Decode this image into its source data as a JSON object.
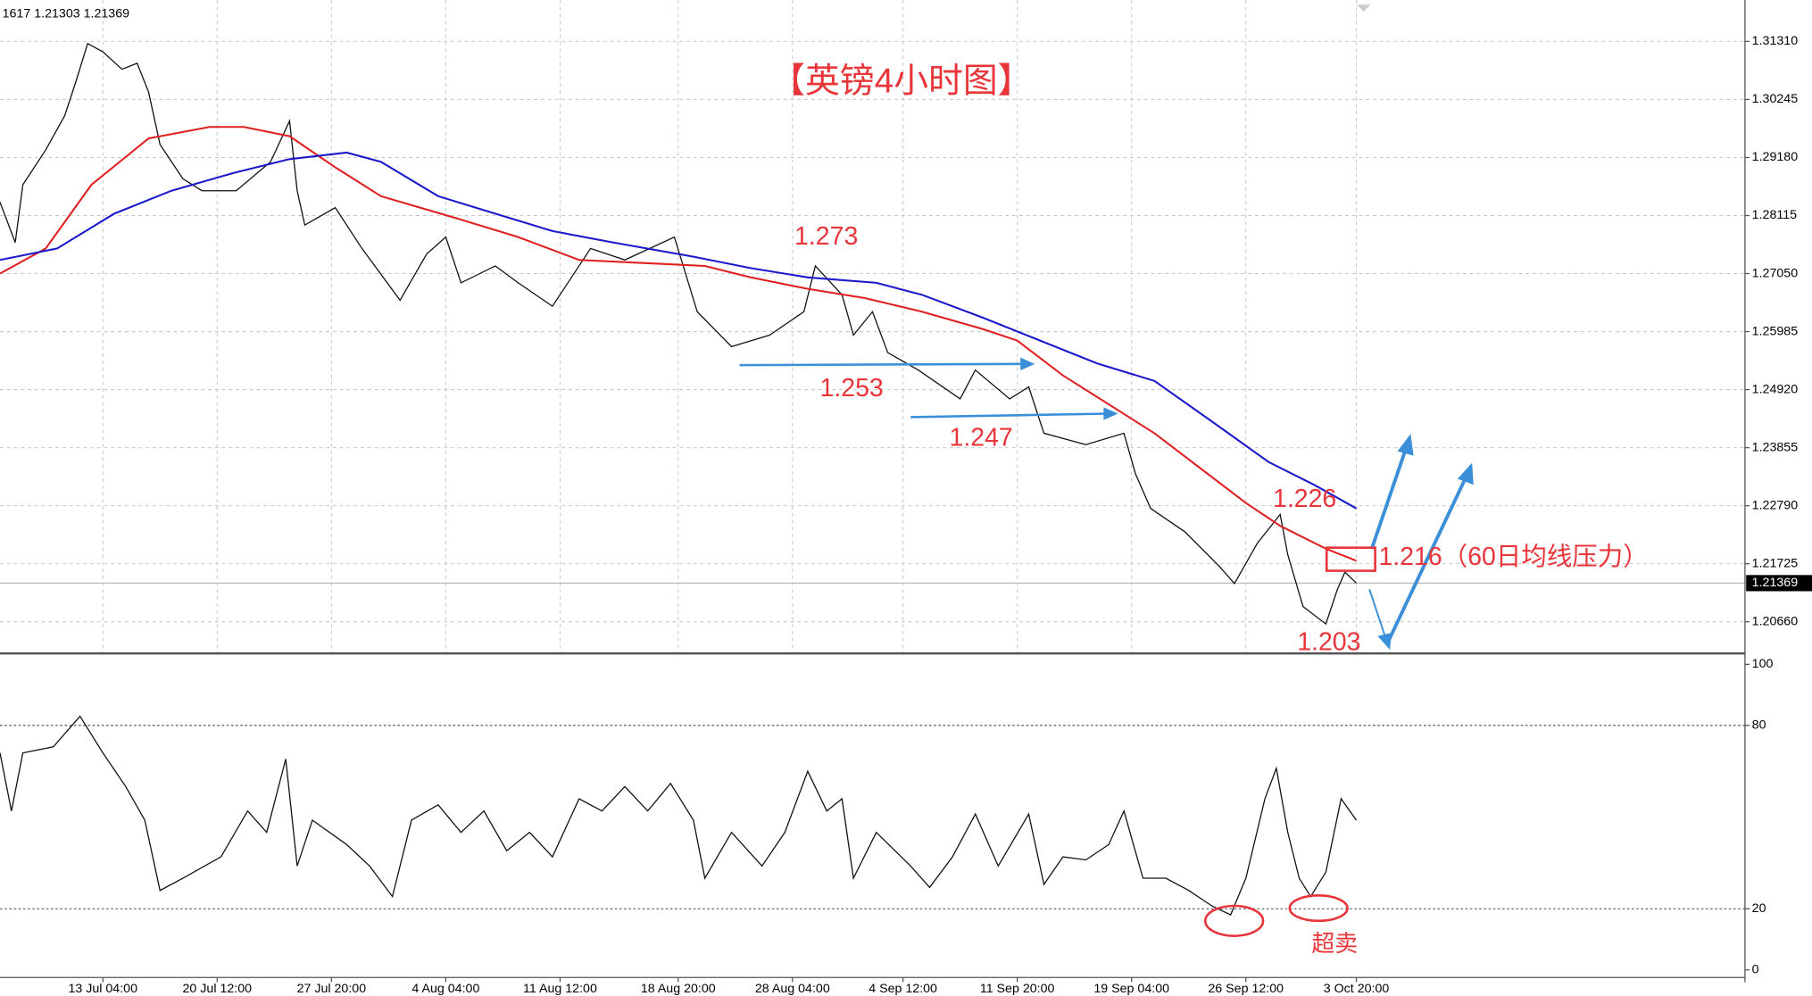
{
  "header": "1617 1.21303 1.21369",
  "chart_data": [
    {
      "type": "line",
      "title": "【英镑4小时图】",
      "xlim": [
        0,
        458
      ],
      "xticks": [
        {
          "value": 27,
          "label": "13 Jul 04:00"
        },
        {
          "value": 57,
          "label": "20 Jul 12:00"
        },
        {
          "value": 87,
          "label": "27 Jul 20:00"
        },
        {
          "value": 117,
          "label": "4 Aug 04:00"
        },
        {
          "value": 147,
          "label": "11 Aug 12:00"
        },
        {
          "value": 178,
          "label": "18 Aug 20:00"
        },
        {
          "value": 208,
          "label": "28 Aug 04:00"
        },
        {
          "value": 237,
          "label": "4 Sep 12:00"
        },
        {
          "value": 267,
          "label": "11 Sep 20:00"
        },
        {
          "value": 297,
          "label": "19 Sep 04:00"
        },
        {
          "value": 327,
          "label": "26 Sep 12:00"
        },
        {
          "value": 356,
          "label": "3 Oct 20:00"
        }
      ],
      "ylim": [
        1.2009,
        1.3207
      ],
      "yticks": [
        {
          "value": 1.3131,
          "label": "1.31310"
        },
        {
          "value": 1.30245,
          "label": "1.30245"
        },
        {
          "value": 1.2918,
          "label": "1.29180"
        },
        {
          "value": 1.28115,
          "label": "1.28115"
        },
        {
          "value": 1.2705,
          "label": "1.27050"
        },
        {
          "value": 1.25985,
          "label": "1.25985"
        },
        {
          "value": 1.2492,
          "label": "1.24920"
        },
        {
          "value": 1.23855,
          "label": "1.23855"
        },
        {
          "value": 1.2279,
          "label": "1.22790"
        },
        {
          "value": 1.21725,
          "label": "1.21725"
        },
        {
          "value": 1.2066,
          "label": "1.20660"
        }
      ],
      "grid": true,
      "last_price": 1.21369,
      "series": [
        {
          "color": "#111111",
          "x": [
            0,
            4,
            6,
            12,
            17,
            20,
            23,
            27,
            32,
            36,
            39,
            42,
            48,
            53,
            62,
            71,
            76,
            78,
            80,
            88,
            95,
            105,
            112,
            117,
            121,
            130,
            136,
            145,
            155,
            164,
            177,
            183,
            192,
            202,
            211,
            214,
            221,
            224,
            229,
            233,
            241,
            252,
            256,
            265,
            270,
            274,
            285,
            295,
            298,
            302,
            311,
            320,
            324,
            330,
            336,
            338,
            342,
            348,
            351,
            353,
            356
          ],
          "values": [
            1.2836,
            1.2762,
            1.2868,
            1.2932,
            1.2995,
            1.3059,
            1.3127,
            1.3112,
            1.308,
            1.3091,
            1.3038,
            1.2942,
            1.2879,
            1.2857,
            1.2857,
            1.291,
            1.2985,
            1.2857,
            1.2794,
            1.2826,
            1.2751,
            1.2656,
            1.2741,
            1.2772,
            1.2688,
            1.2719,
            1.2688,
            1.2645,
            1.2751,
            1.273,
            1.2772,
            1.2635,
            1.2571,
            1.2592,
            1.2635,
            1.2719,
            1.2666,
            1.2592,
            1.2635,
            1.256,
            1.2528,
            1.2475,
            1.2528,
            1.2475,
            1.2497,
            1.2412,
            1.2391,
            1.2412,
            1.2338,
            1.2274,
            1.2231,
            1.2168,
            1.2136,
            1.221,
            1.2263,
            1.2189,
            1.2094,
            1.2062,
            1.2125,
            1.2157,
            1.2137
          ]
        },
        {
          "color": "#e02020",
          "x": [
            0,
            12,
            24,
            39,
            55,
            64,
            76,
            88,
            100,
            121,
            136,
            152,
            170,
            185,
            197,
            212,
            227,
            242,
            258,
            267,
            279,
            291,
            303,
            315,
            327,
            336,
            348,
            356
          ],
          "values": [
            1.2705,
            1.2751,
            1.2868,
            1.2953,
            1.2974,
            1.2974,
            1.2957,
            1.29,
            1.2847,
            1.2804,
            1.2772,
            1.273,
            1.2724,
            1.2719,
            1.2698,
            1.2677,
            1.266,
            1.2635,
            1.2603,
            1.2582,
            1.2518,
            1.2465,
            1.2412,
            1.2348,
            1.2284,
            1.2242,
            1.22,
            1.2178
          ]
        },
        {
          "color": "#1a1acc",
          "x": [
            0,
            15,
            30,
            45,
            61,
            76,
            91,
            100,
            115,
            130,
            145,
            161,
            182,
            197,
            212,
            230,
            242,
            258,
            273,
            288,
            303,
            318,
            333,
            345,
            356
          ],
          "values": [
            1.273,
            1.2751,
            1.2815,
            1.2857,
            1.2889,
            1.2915,
            1.2927,
            1.291,
            1.2847,
            1.2815,
            1.2783,
            1.2762,
            1.2736,
            1.2715,
            1.2698,
            1.2688,
            1.2666,
            1.2624,
            1.2582,
            1.254,
            1.2508,
            1.2434,
            1.2359,
            1.2317,
            1.2274
          ]
        }
      ],
      "annotations": [
        "1.273",
        "1.253",
        "1.247",
        "1.226",
        "1.216（60日均线压力）",
        "1.203"
      ]
    },
    {
      "type": "line",
      "xlim": [
        0,
        458
      ],
      "ylim": [
        -4,
        103
      ],
      "yticks": [
        100,
        80,
        20,
        0
      ],
      "levels": [
        80,
        20
      ],
      "series": [
        {
          "color": "#111111",
          "x": [
            0,
            3,
            6,
            14,
            21,
            27,
            33,
            38,
            42,
            48,
            58,
            65,
            70,
            75,
            78,
            82,
            91,
            97,
            103,
            108,
            115,
            121,
            127,
            133,
            139,
            145,
            152,
            158,
            164,
            170,
            176,
            182,
            185,
            192,
            200,
            206,
            212,
            217,
            221,
            224,
            230,
            239,
            244,
            250,
            256,
            262,
            270,
            274,
            279,
            285,
            291,
            295,
            300,
            306,
            312,
            318,
            323,
            327,
            332,
            335,
            338,
            341,
            344,
            348,
            352,
            356
          ],
          "values": [
            71,
            52,
            71,
            73,
            83,
            71,
            60,
            49,
            26,
            30,
            37,
            52,
            45,
            69,
            34,
            49,
            41,
            34,
            24,
            49,
            54,
            45,
            52,
            39,
            45,
            37,
            56,
            52,
            60,
            52,
            61,
            49,
            30,
            45,
            34,
            45,
            65,
            52,
            56,
            30,
            45,
            34,
            27,
            37,
            51,
            34,
            51,
            28,
            37,
            36,
            41,
            52,
            30,
            30,
            26,
            21,
            18,
            30,
            56,
            66,
            45,
            30,
            24,
            32,
            56,
            49
          ]
        }
      ],
      "annotations": [
        "超卖"
      ]
    }
  ]
}
